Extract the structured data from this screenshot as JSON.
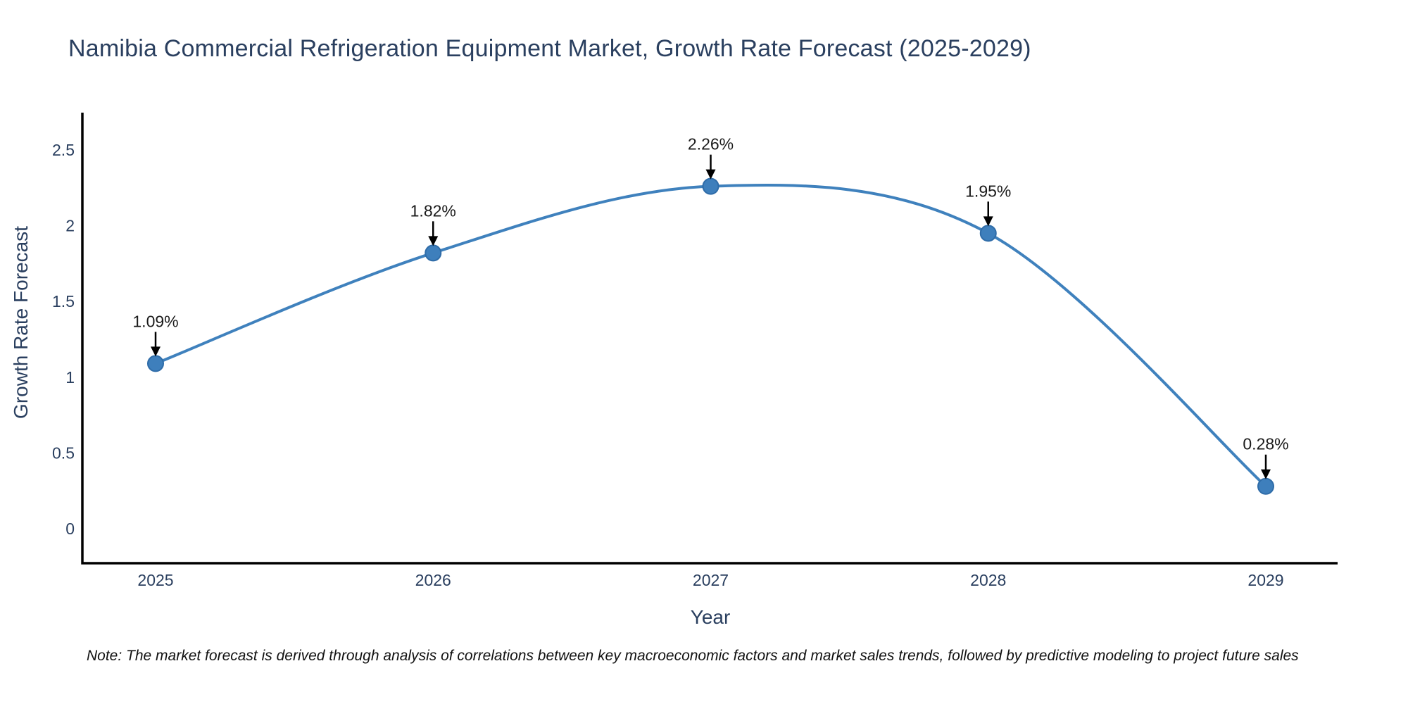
{
  "title": "Namibia Commercial Refrigeration Equipment Market, Growth Rate Forecast (2025-2029)",
  "note": "Note: The market forecast is derived through analysis of correlations between key macroeconomic factors and market sales trends, followed by predictive modeling to project future sales",
  "chart_data": {
    "type": "line",
    "line_shape": "spline",
    "title": "Namibia Commercial Refrigeration Equipment Market, Growth Rate Forecast (2025-2029)",
    "xlabel": "Year",
    "ylabel": "Growth Rate Forecast",
    "x": [
      2025,
      2026,
      2027,
      2028,
      2029
    ],
    "y": [
      1.09,
      1.82,
      2.26,
      1.95,
      0.28
    ],
    "point_labels": [
      "1.09%",
      "1.82%",
      "2.26%",
      "1.95%",
      "0.28%"
    ],
    "x_tick_labels": [
      "2025",
      "2026",
      "2027",
      "2028",
      "2029"
    ],
    "y_tick_values": [
      0,
      0.5,
      1,
      1.5,
      2,
      2.5
    ],
    "y_tick_labels": [
      "0",
      "0.5",
      "1",
      "1.5",
      "2",
      "2.5"
    ],
    "ylim": [
      -0.23,
      2.75
    ],
    "grid": false,
    "legend": "none",
    "colors": {
      "line": "#3f81bd",
      "marker_fill": "#3e7fbc",
      "marker_edge": "#2f6ca8",
      "axis_line": "#000000",
      "tick_text": "#2a3f5f",
      "annotation_text": "#1a1a1a",
      "annotation_arrow": "#000000",
      "background": "#ffffff"
    }
  }
}
